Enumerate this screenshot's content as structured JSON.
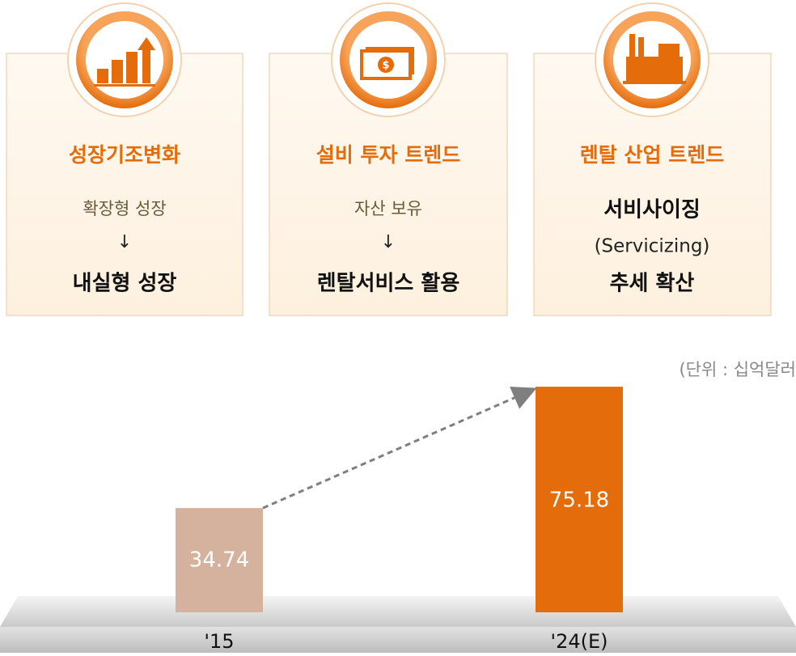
{
  "cards": [
    {
      "title": "성장기조변화",
      "lines": [
        "확장형 성장",
        "↓",
        "내실형 성장"
      ]
    },
    {
      "title": "설비 투자 트렌드",
      "lines": [
        "자산 보유",
        "↓",
        "렌탈서비스 활용"
      ]
    },
    {
      "title": "렌탈 산업 트렌드",
      "lines": [
        "서비사이징",
        "(Servicizing)",
        "추세 확산"
      ]
    }
  ],
  "chart_data": {
    "type": "bar",
    "unit_note": "(단위 : 십억달러",
    "categories": [
      "'15",
      "'24(E)"
    ],
    "values": [
      34.74,
      75.18
    ],
    "colors": [
      "#d4b29e",
      "#e46c0a"
    ]
  }
}
